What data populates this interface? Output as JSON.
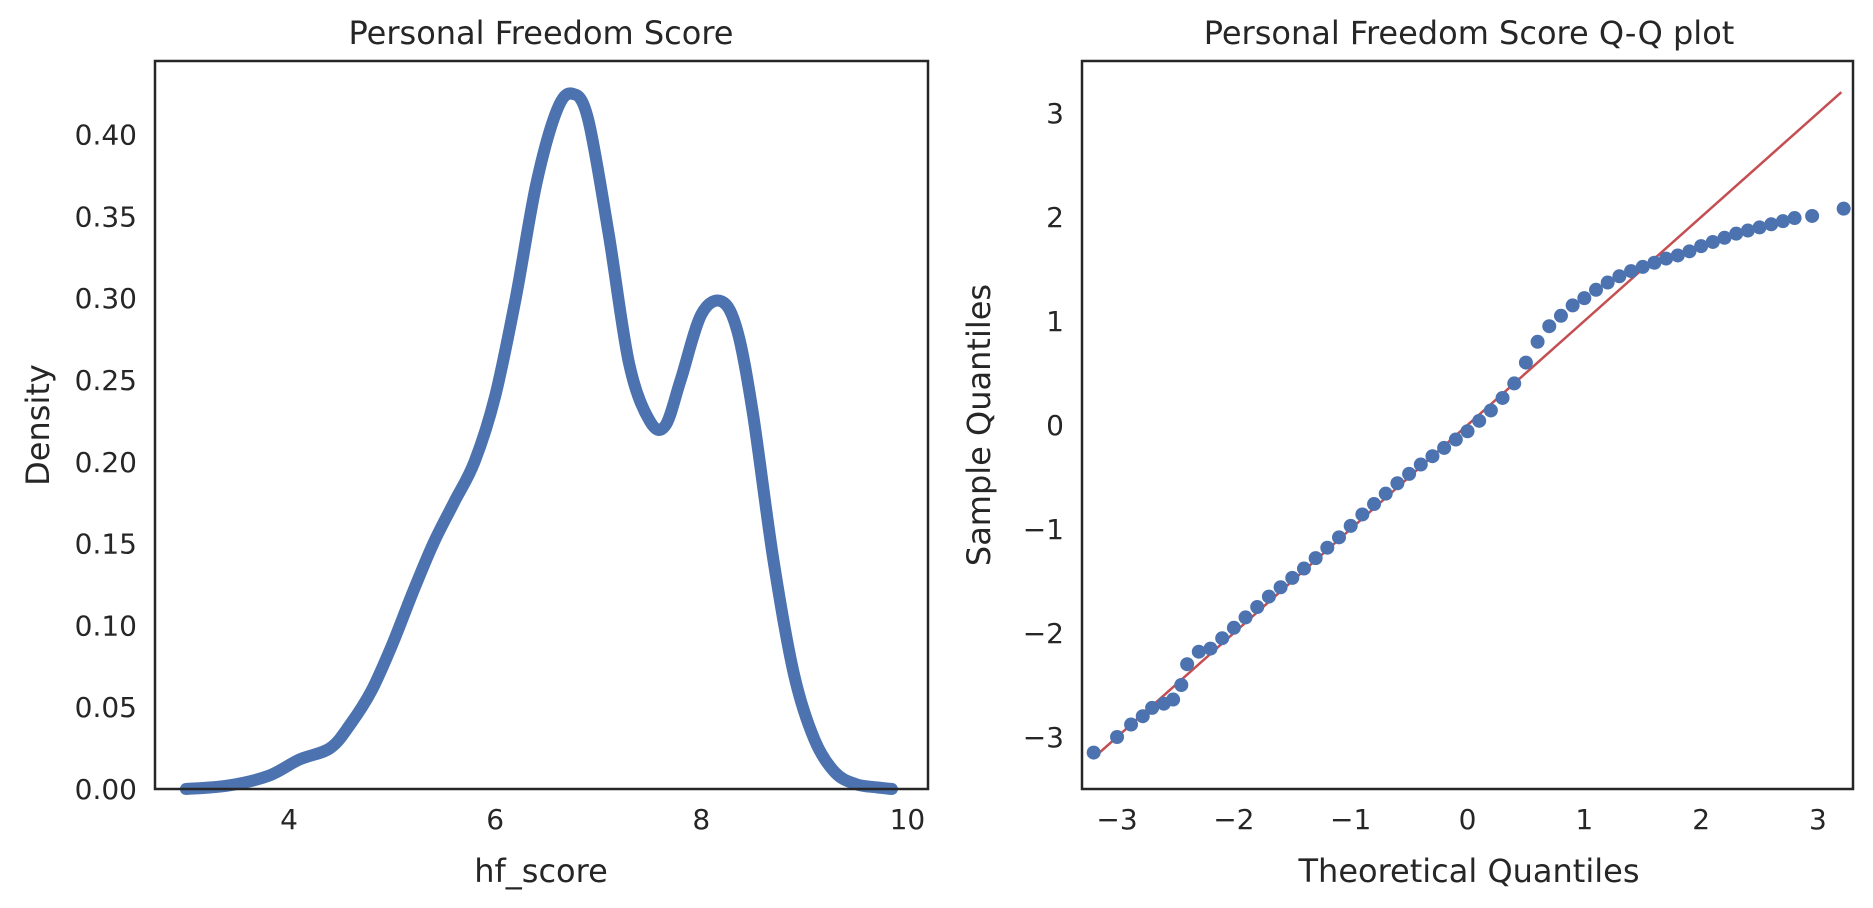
{
  "colors": {
    "primary": "#4c72b0",
    "reference_line": "#c44e52",
    "frame": "#262626"
  },
  "chart_data": [
    {
      "type": "line",
      "title": "Personal Freedom Score",
      "xlabel": "hf_score",
      "ylabel": "Density",
      "xlim": [
        2.7,
        10.2
      ],
      "ylim": [
        0,
        0.445
      ],
      "xticks": [
        4,
        6,
        8,
        10
      ],
      "xtick_labels": [
        "4",
        "6",
        "8",
        "10"
      ],
      "yticks": [
        0,
        0.05,
        0.1,
        0.15,
        0.2,
        0.25,
        0.3,
        0.35,
        0.4
      ],
      "ytick_labels": [
        "0.00",
        "0.05",
        "0.10",
        "0.15",
        "0.20",
        "0.25",
        "0.30",
        "0.35",
        "0.40"
      ],
      "grid": false,
      "series": [
        {
          "x": [
            3.0,
            3.4,
            3.8,
            4.1,
            4.4,
            4.6,
            4.8,
            5.0,
            5.2,
            5.4,
            5.6,
            5.8,
            6.0,
            6.2,
            6.4,
            6.6,
            6.75,
            6.9,
            7.1,
            7.3,
            7.5,
            7.65,
            7.8,
            8.0,
            8.2,
            8.35,
            8.5,
            8.7,
            8.9,
            9.1,
            9.3,
            9.5,
            9.7,
            9.85
          ],
          "y": [
            0.0,
            0.002,
            0.008,
            0.018,
            0.025,
            0.04,
            0.06,
            0.088,
            0.12,
            0.15,
            0.175,
            0.2,
            0.24,
            0.3,
            0.37,
            0.415,
            0.425,
            0.41,
            0.34,
            0.26,
            0.225,
            0.222,
            0.25,
            0.29,
            0.298,
            0.28,
            0.23,
            0.14,
            0.07,
            0.03,
            0.01,
            0.003,
            0.001,
            0.0
          ]
        }
      ]
    },
    {
      "type": "scatter",
      "title": "Personal Freedom Score Q-Q plot",
      "xlabel": "Theoretical Quantiles",
      "ylabel": "Sample Quantiles",
      "xlim": [
        -3.3,
        3.3
      ],
      "ylim": [
        -3.5,
        3.5
      ],
      "xticks": [
        -3,
        -2,
        -1,
        0,
        1,
        2,
        3
      ],
      "xtick_labels": [
        "−3",
        "−2",
        "−1",
        "0",
        "1",
        "2",
        "3"
      ],
      "yticks": [
        -3,
        -2,
        -1,
        0,
        1,
        2,
        3
      ],
      "ytick_labels": [
        "−3",
        "−2",
        "−1",
        "0",
        "1",
        "2",
        "3"
      ],
      "grid": false,
      "reference_line": {
        "x": [
          -3.2,
          3.2
        ],
        "y": [
          -3.2,
          3.2
        ]
      },
      "series": [
        {
          "x": [
            -3.2,
            -3.0,
            -2.88,
            -2.78,
            -2.7,
            -2.6,
            -2.52,
            -2.45,
            -2.4,
            -2.3,
            -2.2,
            -2.1,
            -2.0,
            -1.9,
            -1.8,
            -1.7,
            -1.6,
            -1.5,
            -1.4,
            -1.3,
            -1.2,
            -1.1,
            -1.0,
            -0.9,
            -0.8,
            -0.7,
            -0.6,
            -0.5,
            -0.4,
            -0.3,
            -0.2,
            -0.1,
            0.0,
            0.1,
            0.2,
            0.3,
            0.4,
            0.5,
            0.6,
            0.7,
            0.8,
            0.9,
            1.0,
            1.1,
            1.2,
            1.3,
            1.4,
            1.5,
            1.6,
            1.7,
            1.8,
            1.9,
            2.0,
            2.1,
            2.2,
            2.3,
            2.4,
            2.5,
            2.6,
            2.7,
            2.8,
            2.95,
            3.22
          ],
          "y": [
            -3.15,
            -3.0,
            -2.88,
            -2.8,
            -2.72,
            -2.68,
            -2.64,
            -2.5,
            -2.3,
            -2.18,
            -2.15,
            -2.05,
            -1.95,
            -1.85,
            -1.75,
            -1.65,
            -1.56,
            -1.47,
            -1.38,
            -1.28,
            -1.18,
            -1.08,
            -0.97,
            -0.86,
            -0.76,
            -0.66,
            -0.56,
            -0.47,
            -0.38,
            -0.3,
            -0.22,
            -0.14,
            -0.06,
            0.04,
            0.14,
            0.26,
            0.4,
            0.6,
            0.8,
            0.95,
            1.05,
            1.15,
            1.22,
            1.3,
            1.37,
            1.43,
            1.48,
            1.52,
            1.56,
            1.6,
            1.63,
            1.67,
            1.72,
            1.76,
            1.8,
            1.84,
            1.87,
            1.9,
            1.93,
            1.96,
            1.99,
            2.01,
            2.08
          ]
        }
      ]
    }
  ]
}
